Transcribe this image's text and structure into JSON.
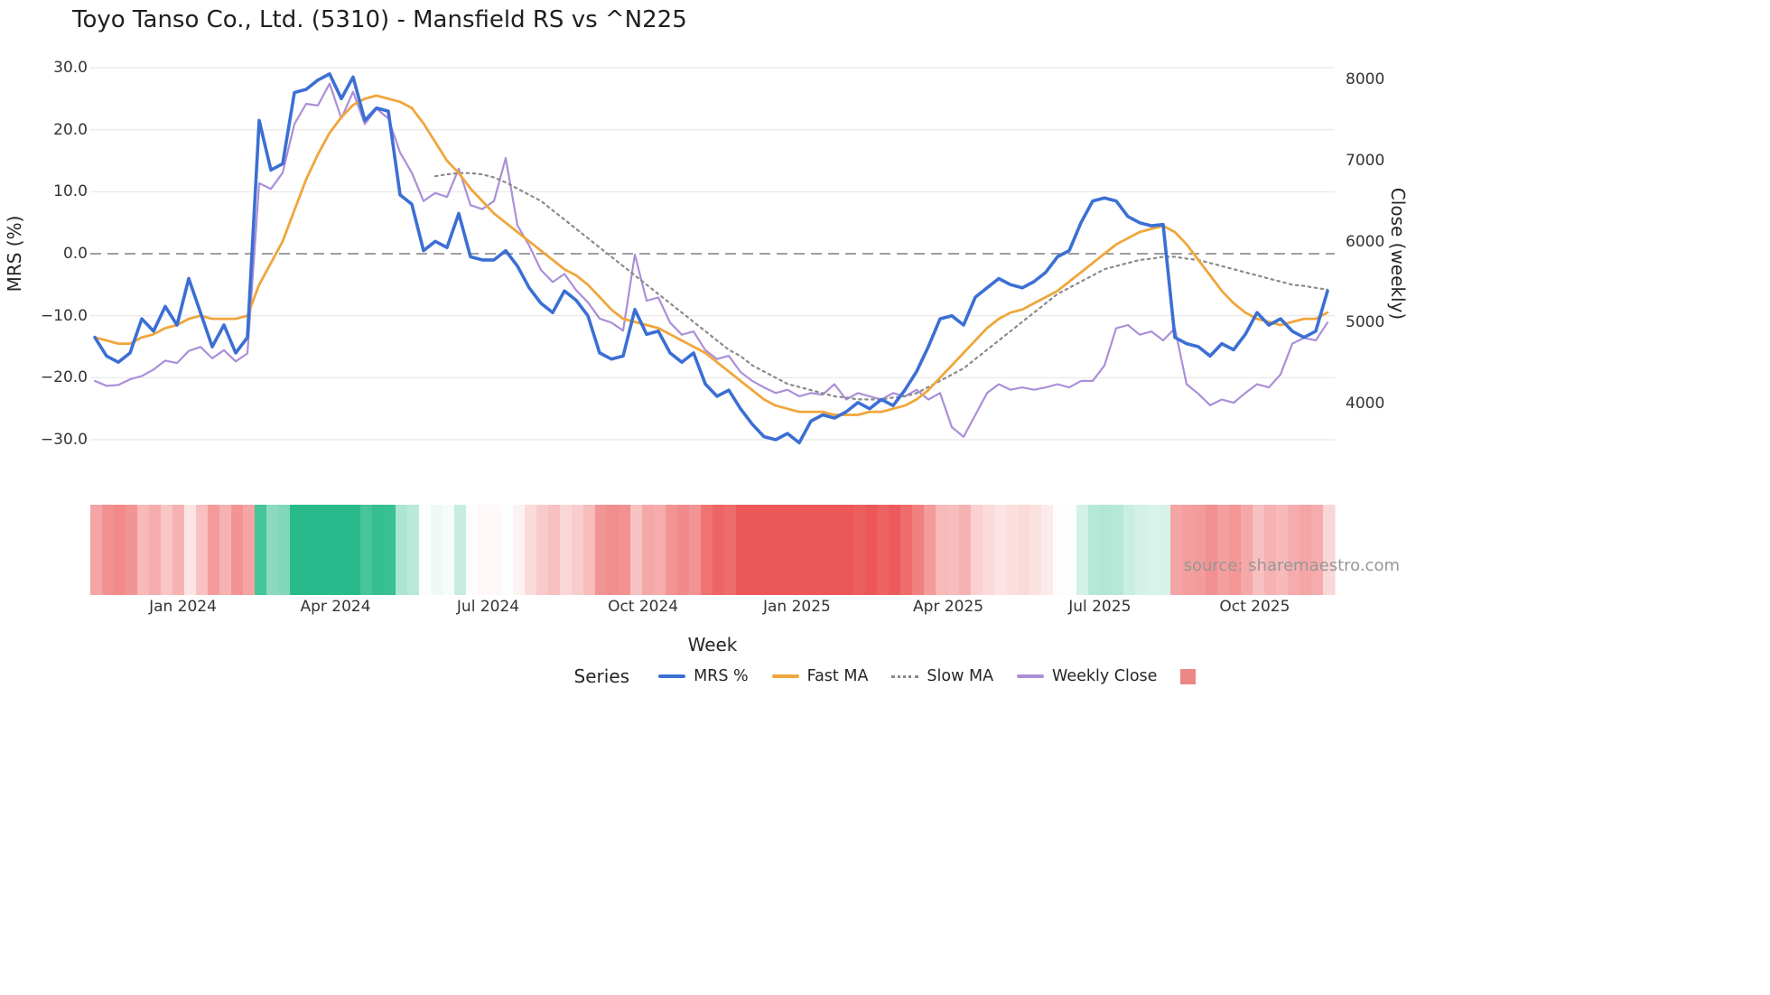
{
  "title": "Toyo Tanso Co., Ltd. (5310) - Mansfield RS vs ^N225",
  "source": "source: sharemaestro.com",
  "axes": {
    "left_label": "MRS (%)",
    "right_label": "Close (weekly)",
    "x_label": "Week",
    "left_ticks": [
      {
        "label": "30.0",
        "v": 30
      },
      {
        "label": "20.0",
        "v": 20
      },
      {
        "label": "10.0",
        "v": 10
      },
      {
        "label": "0.0",
        "v": 0
      },
      {
        "label": "−10.0",
        "v": -10
      },
      {
        "label": "−20.0",
        "v": -20
      },
      {
        "label": "−30.0",
        "v": -30
      }
    ],
    "right_ticks": [
      {
        "label": "8000",
        "v": 8000
      },
      {
        "label": "7000",
        "v": 7000
      },
      {
        "label": "6000",
        "v": 6000
      },
      {
        "label": "5000",
        "v": 5000
      },
      {
        "label": "4000",
        "v": 4000
      }
    ]
  },
  "legend": {
    "title": "Series",
    "entries": [
      {
        "label": "MRS %",
        "swatch": "line",
        "color": "#3b6fd4"
      },
      {
        "label": "Fast MA",
        "swatch": "line",
        "color": "#f0a63c"
      },
      {
        "label": "Slow MA",
        "swatch": "dash",
        "color": "#8a8a8a"
      },
      {
        "label": "Weekly Close",
        "swatch": "line",
        "color": "#ab8fd8"
      },
      {
        "label": "",
        "swatch": "patch",
        "color": "#ec8787"
      }
    ]
  },
  "colors": {
    "grid": "#e7e7e7",
    "zero_line": "#7f7f7f",
    "background": "#ffffff",
    "heat_red_max": "#ec5858",
    "heat_green_max": "#28ba8a"
  },
  "chart_data": {
    "type": "line",
    "title": "Toyo Tanso Co., Ltd. (5310) - Mansfield RS vs ^N225",
    "xlabel": "Week",
    "ylabel_left": "MRS (%)",
    "ylabel_right": "Close (weekly)",
    "left_ylim": [
      -33,
      33
    ],
    "right_ticks_shown": [
      4000,
      5000,
      6000,
      7000,
      8000
    ],
    "grid": "horizontal",
    "legend_position": "bottom",
    "n_weeks": 106,
    "x_ticks": [
      {
        "label": "Jan 2024",
        "i": 7.5
      },
      {
        "label": "Apr 2024",
        "i": 20.5
      },
      {
        "label": "Jul 2024",
        "i": 33.5
      },
      {
        "label": "Oct 2024",
        "i": 46.7
      },
      {
        "label": "Jan 2025",
        "i": 59.8
      },
      {
        "label": "Apr 2025",
        "i": 72.7
      },
      {
        "label": "Jul 2025",
        "i": 85.6
      },
      {
        "label": "Oct 2025",
        "i": 98.8
      }
    ],
    "series": [
      {
        "name": "MRS %",
        "axis": "left",
        "color": "#3b6fd4",
        "style": "solid",
        "lw": 3.6,
        "values": [
          -13.5,
          -16.5,
          -17.5,
          -16.0,
          -10.5,
          -12.5,
          -8.5,
          -11.5,
          -4.0,
          -9.5,
          -15.0,
          -11.5,
          -16.0,
          -13.5,
          21.5,
          13.5,
          14.5,
          26.0,
          26.5,
          28.0,
          29.0,
          25.0,
          28.5,
          21.5,
          23.5,
          23.0,
          9.5,
          8.0,
          0.5,
          2.0,
          1.0,
          6.5,
          -0.5,
          -1.0,
          -1.0,
          0.5,
          -2.0,
          -5.5,
          -8.0,
          -9.5,
          -6.0,
          -7.5,
          -10.0,
          -16.0,
          -17.0,
          -16.5,
          -9.0,
          -13.0,
          -12.5,
          -16.0,
          -17.5,
          -16.0,
          -21.0,
          -23.0,
          -22.0,
          -25.0,
          -27.5,
          -29.5,
          -30.0,
          -29.0,
          -30.5,
          -27.0,
          -26.0,
          -26.5,
          -25.5,
          -24.0,
          -25.0,
          -23.5,
          -24.5,
          -22.0,
          -19.0,
          -15.0,
          -10.5,
          -10.0,
          -11.5,
          -7.0,
          -5.5,
          -4.0,
          -5.0,
          -5.5,
          -4.5,
          -3.0,
          -0.5,
          0.5,
          5.0,
          8.5,
          9.0,
          8.5,
          6.0,
          5.0,
          4.5,
          4.7,
          -13.5,
          -14.5,
          -15.0,
          -16.5,
          -14.5,
          -15.5,
          -13.0,
          -9.5,
          -11.5,
          -10.5,
          -12.5,
          -13.5,
          -12.5,
          -6.0
        ]
      },
      {
        "name": "Fast MA",
        "axis": "left",
        "color": "#f0a63c",
        "style": "solid",
        "lw": 2.8,
        "values": [
          -13.5,
          -14.0,
          -14.5,
          -14.5,
          -13.5,
          -13.0,
          -12.0,
          -11.5,
          -10.5,
          -10.0,
          -10.5,
          -10.5,
          -10.5,
          -10.0,
          -5.0,
          -1.5,
          2.0,
          7.0,
          12.0,
          16.0,
          19.5,
          22.0,
          24.0,
          25.0,
          25.5,
          25.0,
          24.5,
          23.5,
          21.0,
          18.0,
          15.0,
          13.0,
          10.5,
          8.5,
          6.5,
          5.0,
          3.5,
          2.0,
          0.5,
          -1.0,
          -2.5,
          -3.5,
          -5.0,
          -7.0,
          -9.0,
          -10.5,
          -11.0,
          -11.5,
          -12.0,
          -13.0,
          -14.0,
          -15.0,
          -16.0,
          -17.5,
          -19.0,
          -20.5,
          -22.0,
          -23.5,
          -24.5,
          -25.0,
          -25.5,
          -25.5,
          -25.5,
          -26.0,
          -26.0,
          -26.0,
          -25.5,
          -25.5,
          -25.0,
          -24.5,
          -23.5,
          -22.0,
          -20.0,
          -18.0,
          -16.0,
          -14.0,
          -12.0,
          -10.5,
          -9.5,
          -9.0,
          -8.0,
          -7.0,
          -6.0,
          -4.5,
          -3.0,
          -1.5,
          0.0,
          1.5,
          2.5,
          3.5,
          4.0,
          4.5,
          3.5,
          1.5,
          -1.0,
          -3.5,
          -6.0,
          -8.0,
          -9.5,
          -10.5,
          -11.0,
          -11.5,
          -11.0,
          -10.5,
          -10.5,
          -9.5
        ]
      },
      {
        "name": "Slow MA",
        "axis": "left",
        "color": "#8a8a8a",
        "style": "dotted",
        "lw": 2.2,
        "values": [
          null,
          null,
          null,
          null,
          null,
          null,
          null,
          null,
          null,
          null,
          null,
          null,
          null,
          null,
          null,
          null,
          null,
          null,
          null,
          null,
          null,
          null,
          null,
          null,
          null,
          null,
          null,
          null,
          null,
          12.5,
          12.8,
          13.0,
          13.0,
          12.8,
          12.3,
          11.5,
          10.5,
          9.5,
          8.5,
          7.0,
          5.5,
          4.0,
          2.5,
          1.0,
          -0.5,
          -2.0,
          -3.5,
          -5.0,
          -6.5,
          -8.0,
          -9.5,
          -11.0,
          -12.5,
          -14.0,
          -15.5,
          -16.5,
          -18.0,
          -19.0,
          -20.0,
          -21.0,
          -21.5,
          -22.0,
          -22.5,
          -23.0,
          -23.2,
          -23.5,
          -23.5,
          -23.5,
          -23.2,
          -23.0,
          -22.5,
          -21.5,
          -20.5,
          -19.5,
          -18.5,
          -17.0,
          -15.5,
          -14.0,
          -12.5,
          -11.0,
          -9.5,
          -8.0,
          -6.5,
          -5.5,
          -4.5,
          -3.5,
          -2.5,
          -2.0,
          -1.5,
          -1.0,
          -0.8,
          -0.5,
          -0.5,
          -0.8,
          -1.0,
          -1.5,
          -2.0,
          -2.5,
          -3.0,
          -3.5,
          -4.0,
          -4.5,
          -5.0,
          -5.2,
          -5.5,
          -5.8
        ]
      },
      {
        "name": "Weekly Close",
        "axis": "right",
        "color": "#ab8fd8",
        "style": "solid",
        "lw": 2.2,
        "values": [
          4280,
          4220,
          4230,
          4300,
          4340,
          4420,
          4530,
          4500,
          4650,
          4700,
          4560,
          4660,
          4520,
          4620,
          6720,
          6650,
          6850,
          7450,
          7700,
          7680,
          7950,
          7520,
          7850,
          7450,
          7640,
          7520,
          7100,
          6850,
          6500,
          6600,
          6550,
          6900,
          6450,
          6400,
          6500,
          7030,
          6200,
          5950,
          5650,
          5500,
          5600,
          5400,
          5250,
          5050,
          5000,
          4900,
          5840,
          5270,
          5310,
          5000,
          4850,
          4890,
          4660,
          4550,
          4590,
          4390,
          4280,
          4200,
          4130,
          4170,
          4090,
          4130,
          4110,
          4240,
          4050,
          4130,
          4090,
          4050,
          4130,
          4090,
          4170,
          4050,
          4130,
          3710,
          3590,
          3860,
          4130,
          4240,
          4170,
          4200,
          4170,
          4200,
          4240,
          4200,
          4280,
          4280,
          4470,
          4930,
          4970,
          4850,
          4890,
          4780,
          4930,
          4240,
          4120,
          3980,
          4050,
          4010,
          4130,
          4240,
          4200,
          4360,
          4740,
          4810,
          4780,
          5000
        ]
      }
    ]
  }
}
